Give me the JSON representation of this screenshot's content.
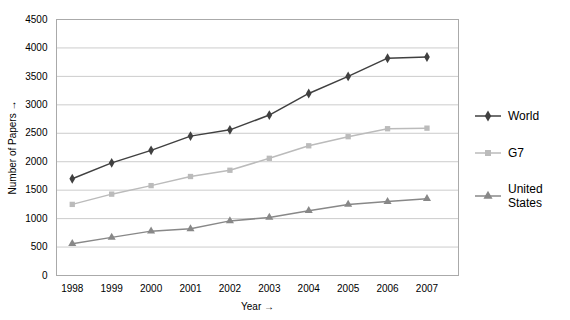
{
  "chart_data": {
    "type": "line",
    "x": [
      1998,
      1999,
      2000,
      2001,
      2002,
      2003,
      2004,
      2005,
      2006,
      2007
    ],
    "series": [
      {
        "name": "World",
        "color": "#404040",
        "marker": "diamond",
        "values": [
          1700,
          1980,
          2200,
          2450,
          2560,
          2820,
          3200,
          3500,
          3820,
          3840
        ]
      },
      {
        "name": "G7",
        "color": "#bbbbbb",
        "marker": "square",
        "values": [
          1250,
          1430,
          1580,
          1740,
          1850,
          2060,
          2280,
          2440,
          2580,
          2590
        ]
      },
      {
        "name": "United\nStates",
        "color": "#888888",
        "marker": "triangle",
        "values": [
          560,
          670,
          780,
          820,
          960,
          1020,
          1140,
          1250,
          1300,
          1350
        ]
      }
    ],
    "xlabel": "Year",
    "ylabel": "Number of Papers",
    "xlim": [
      1997.6,
      2007.8
    ],
    "xticks": [
      1998,
      1999,
      2000,
      2001,
      2002,
      2003,
      2004,
      2005,
      2006,
      2007
    ],
    "ylim": [
      0,
      4500
    ],
    "yticks": [
      0,
      500,
      1000,
      1500,
      2000,
      2500,
      3000,
      3500,
      4000,
      4500
    ],
    "grid": true,
    "legend": "right"
  }
}
